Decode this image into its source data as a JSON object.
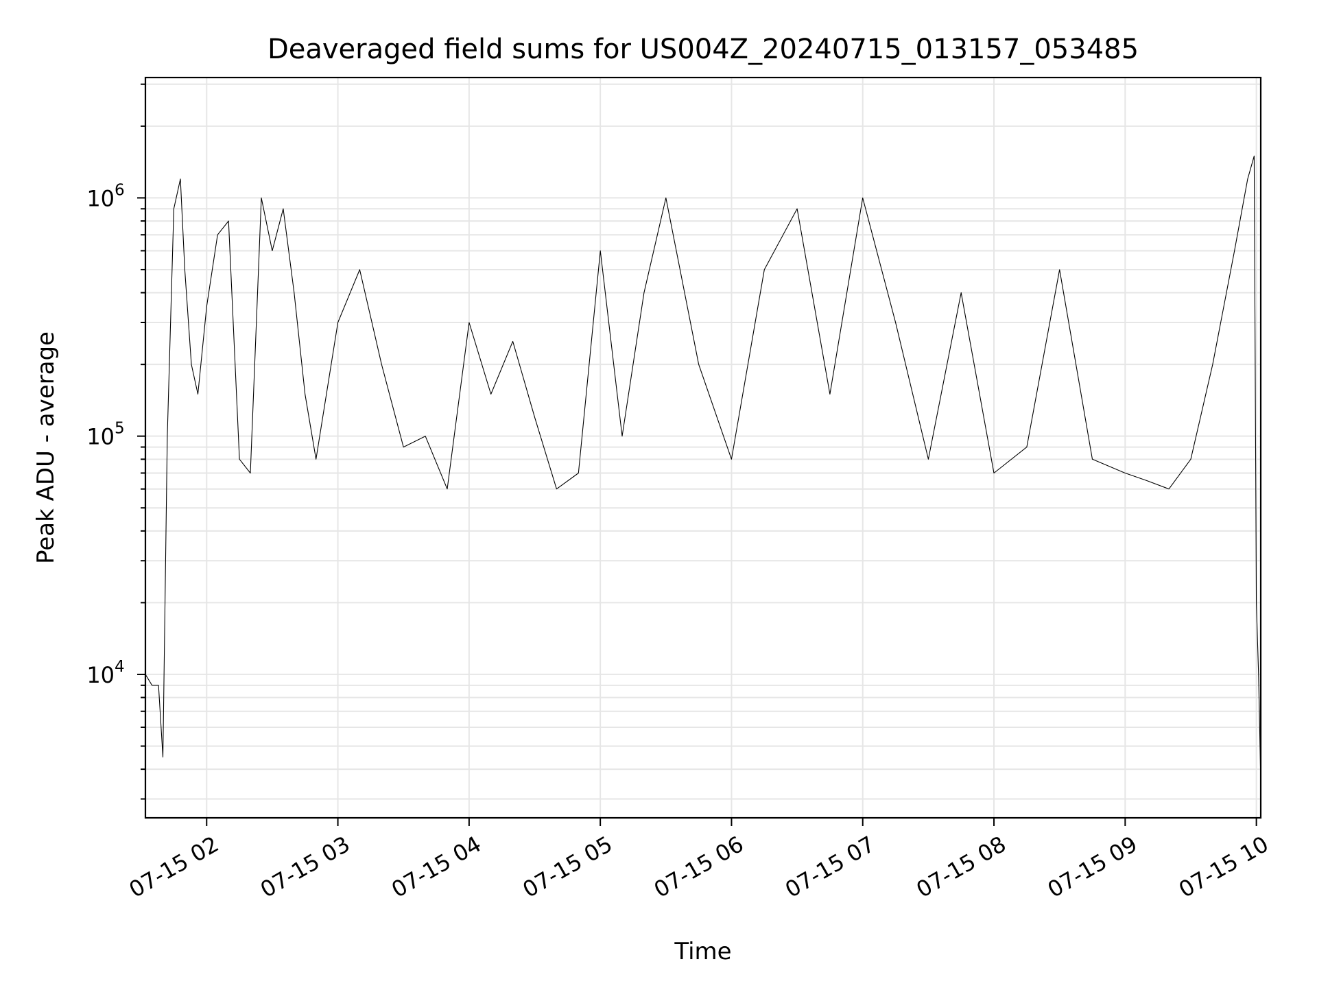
{
  "chart_data": {
    "type": "line",
    "title": "Deaveraged field sums for US004Z_20240715_013157_053485",
    "xlabel": "Time",
    "ylabel": "Peak ADU - average",
    "y_scale": "log",
    "ylim": [
      2500,
      3200000
    ],
    "xlim": [
      "2024-07-15 01:32",
      "2024-07-15 10:02"
    ],
    "grid": true,
    "x_ticks": [
      "07-15 02",
      "07-15 03",
      "07-15 04",
      "07-15 05",
      "07-15 06",
      "07-15 07",
      "07-15 08",
      "07-15 09",
      "07-15 10"
    ],
    "y_ticks": [
      {
        "value": 10000,
        "base": "10",
        "exp": "4"
      },
      {
        "value": 100000,
        "base": "10",
        "exp": "5"
      },
      {
        "value": 1000000,
        "base": "10",
        "exp": "6"
      }
    ],
    "series": [
      {
        "color": "#000000",
        "x": [
          "2024-07-15 01:32",
          "2024-07-15 01:35",
          "2024-07-15 01:38",
          "2024-07-15 01:40",
          "2024-07-15 01:42",
          "2024-07-15 01:45",
          "2024-07-15 01:48",
          "2024-07-15 01:50",
          "2024-07-15 01:53",
          "2024-07-15 01:56",
          "2024-07-15 02:00",
          "2024-07-15 02:05",
          "2024-07-15 02:10",
          "2024-07-15 02:15",
          "2024-07-15 02:20",
          "2024-07-15 02:25",
          "2024-07-15 02:30",
          "2024-07-15 02:35",
          "2024-07-15 02:40",
          "2024-07-15 02:45",
          "2024-07-15 02:50",
          "2024-07-15 03:00",
          "2024-07-15 03:10",
          "2024-07-15 03:20",
          "2024-07-15 03:30",
          "2024-07-15 03:40",
          "2024-07-15 03:50",
          "2024-07-15 04:00",
          "2024-07-15 04:10",
          "2024-07-15 04:20",
          "2024-07-15 04:30",
          "2024-07-15 04:40",
          "2024-07-15 04:50",
          "2024-07-15 05:00",
          "2024-07-15 05:10",
          "2024-07-15 05:20",
          "2024-07-15 05:30",
          "2024-07-15 05:45",
          "2024-07-15 06:00",
          "2024-07-15 06:15",
          "2024-07-15 06:30",
          "2024-07-15 06:45",
          "2024-07-15 07:00",
          "2024-07-15 07:15",
          "2024-07-15 07:30",
          "2024-07-15 07:45",
          "2024-07-15 08:00",
          "2024-07-15 08:15",
          "2024-07-15 08:30",
          "2024-07-15 08:45",
          "2024-07-15 09:00",
          "2024-07-15 09:10",
          "2024-07-15 09:20",
          "2024-07-15 09:30",
          "2024-07-15 09:40",
          "2024-07-15 09:50",
          "2024-07-15 09:56",
          "2024-07-15 09:59",
          "2024-07-15 10:00",
          "2024-07-15 10:01",
          "2024-07-15 10:02"
        ],
        "y": [
          10000,
          9000,
          9000,
          4500,
          100000,
          900000,
          1200000,
          500000,
          200000,
          150000,
          350000,
          700000,
          800000,
          80000,
          70000,
          1000000,
          600000,
          900000,
          400000,
          150000,
          80000,
          300000,
          500000,
          200000,
          90000,
          100000,
          60000,
          300000,
          150000,
          250000,
          120000,
          60000,
          70000,
          600000,
          100000,
          400000,
          1000000,
          200000,
          80000,
          500000,
          900000,
          150000,
          1000000,
          300000,
          80000,
          400000,
          70000,
          90000,
          500000,
          80000,
          70000,
          65000,
          60000,
          80000,
          200000,
          600000,
          1200000,
          1500000,
          20000,
          10000,
          3500
        ]
      }
    ]
  }
}
